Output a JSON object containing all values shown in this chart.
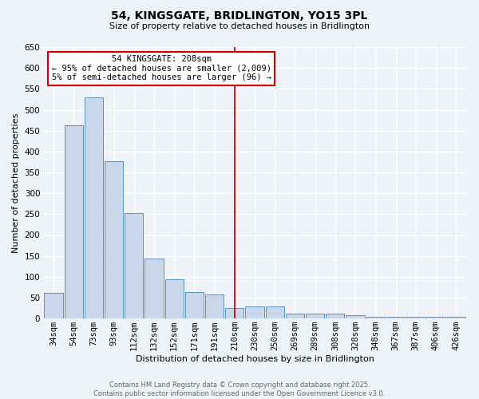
{
  "title": "54, KINGSGATE, BRIDLINGTON, YO15 3PL",
  "subtitle": "Size of property relative to detached houses in Bridlington",
  "xlabel": "Distribution of detached houses by size in Bridlington",
  "ylabel": "Number of detached properties",
  "bar_labels": [
    "34sqm",
    "54sqm",
    "73sqm",
    "93sqm",
    "112sqm",
    "132sqm",
    "152sqm",
    "171sqm",
    "191sqm",
    "210sqm",
    "230sqm",
    "250sqm",
    "269sqm",
    "289sqm",
    "308sqm",
    "328sqm",
    "348sqm",
    "367sqm",
    "387sqm",
    "406sqm",
    "426sqm"
  ],
  "bar_values": [
    62,
    462,
    530,
    377,
    252,
    143,
    94,
    63,
    57,
    25,
    29,
    29,
    12,
    12,
    12,
    8,
    4,
    4,
    4,
    4,
    4
  ],
  "bar_color": "#c8d8ea",
  "bar_edge_color": "#6090b8",
  "vline_x": 9,
  "vline_color": "#cc0000",
  "annotation_title": "54 KINGSGATE: 208sqm",
  "annotation_line1": "← 95% of detached houses are smaller (2,009)",
  "annotation_line2": "5% of semi-detached houses are larger (96) →",
  "annotation_box_color": "white",
  "annotation_box_edge": "#cc0000",
  "ylim": [
    0,
    650
  ],
  "yticks": [
    0,
    50,
    100,
    150,
    200,
    250,
    300,
    350,
    400,
    450,
    500,
    550,
    600,
    650
  ],
  "footer_line1": "Contains HM Land Registry data © Crown copyright and database right 2025.",
  "footer_line2": "Contains public sector information licensed under the Open Government Licence v3.0.",
  "bg_color": "#eef2f7",
  "grid_color": "white",
  "title_fontsize": 10,
  "subtitle_fontsize": 8,
  "axis_label_fontsize": 8,
  "tick_fontsize": 7.5,
  "annot_fontsize": 7.5,
  "footer_fontsize": 6
}
